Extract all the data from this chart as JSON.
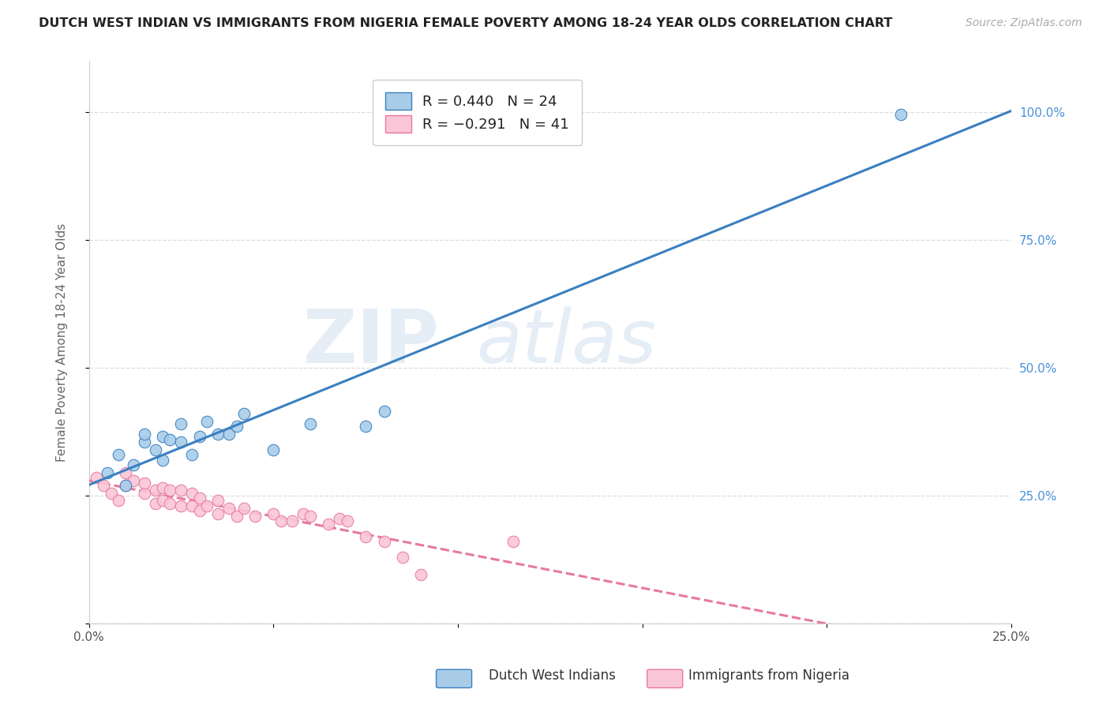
{
  "title": "DUTCH WEST INDIAN VS IMMIGRANTS FROM NIGERIA FEMALE POVERTY AMONG 18-24 YEAR OLDS CORRELATION CHART",
  "source": "Source: ZipAtlas.com",
  "ylabel": "Female Poverty Among 18-24 Year Olds",
  "xlabel": "",
  "blue_label": "Dutch West Indians",
  "pink_label": "Immigrants from Nigeria",
  "blue_R": 0.44,
  "blue_N": 24,
  "pink_R": -0.291,
  "pink_N": 41,
  "blue_color": "#a8cce8",
  "pink_color": "#f9c6d8",
  "blue_line_color": "#3a7fc1",
  "pink_line_color": "#e8799a",
  "xlim": [
    0.0,
    0.25
  ],
  "ylim": [
    0.0,
    1.1
  ],
  "xticks": [
    0.0,
    0.05,
    0.1,
    0.15,
    0.2,
    0.25
  ],
  "yticks": [
    0.0,
    0.25,
    0.5,
    0.75,
    1.0
  ],
  "xticklabels": [
    "0.0%",
    "",
    "",
    "",
    "",
    "25.0%"
  ],
  "yticklabels": [
    "",
    "25.0%",
    "50.0%",
    "75.0%",
    "100.0%"
  ],
  "watermark_zip": "ZIP",
  "watermark_atlas": "atlas",
  "blue_x": [
    0.005,
    0.008,
    0.01,
    0.012,
    0.015,
    0.015,
    0.018,
    0.02,
    0.02,
    0.022,
    0.025,
    0.025,
    0.028,
    0.03,
    0.032,
    0.035,
    0.038,
    0.04,
    0.042,
    0.05,
    0.06,
    0.075,
    0.08,
    0.22
  ],
  "blue_y": [
    0.295,
    0.33,
    0.27,
    0.31,
    0.355,
    0.37,
    0.34,
    0.32,
    0.365,
    0.36,
    0.355,
    0.39,
    0.33,
    0.365,
    0.395,
    0.37,
    0.37,
    0.385,
    0.41,
    0.34,
    0.39,
    0.385,
    0.415,
    0.995
  ],
  "pink_x": [
    0.002,
    0.004,
    0.006,
    0.008,
    0.01,
    0.01,
    0.012,
    0.015,
    0.015,
    0.018,
    0.018,
    0.02,
    0.02,
    0.022,
    0.022,
    0.025,
    0.025,
    0.028,
    0.028,
    0.03,
    0.03,
    0.032,
    0.035,
    0.035,
    0.038,
    0.04,
    0.042,
    0.045,
    0.05,
    0.052,
    0.055,
    0.058,
    0.06,
    0.065,
    0.068,
    0.07,
    0.075,
    0.08,
    0.085,
    0.09,
    0.115
  ],
  "pink_y": [
    0.285,
    0.27,
    0.255,
    0.24,
    0.27,
    0.295,
    0.28,
    0.255,
    0.275,
    0.235,
    0.26,
    0.24,
    0.265,
    0.235,
    0.26,
    0.23,
    0.26,
    0.23,
    0.255,
    0.22,
    0.245,
    0.23,
    0.215,
    0.24,
    0.225,
    0.21,
    0.225,
    0.21,
    0.215,
    0.2,
    0.2,
    0.215,
    0.21,
    0.195,
    0.205,
    0.2,
    0.17,
    0.16,
    0.13,
    0.095,
    0.16
  ],
  "background_color": "#ffffff",
  "grid_color": "#dddddd",
  "title_fontsize": 11.5,
  "axis_label_fontsize": 11,
  "tick_fontsize": 11,
  "legend_fontsize": 13,
  "source_fontsize": 10
}
